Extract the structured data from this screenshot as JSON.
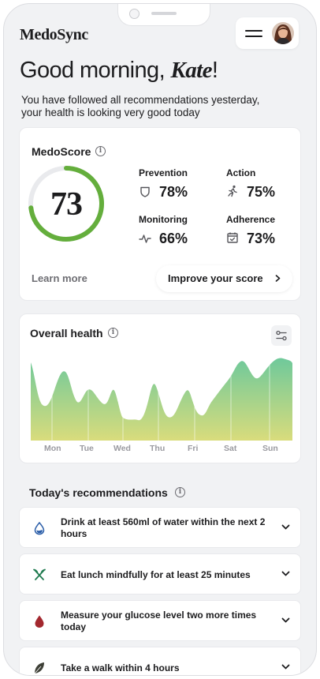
{
  "app": {
    "logo": "MedoSync"
  },
  "header": {
    "menu_icon": "hamburger-menu-icon",
    "avatar": "user-avatar"
  },
  "greeting": {
    "prefix": "Good morning, ",
    "name": "Kate",
    "suffix": "!"
  },
  "subtitle": "You have followed all recommendations yesterday, your health is looking very good today",
  "medoscore": {
    "title": "MedoScore",
    "score": "73",
    "score_fraction": 0.73,
    "ring_color": "#64ae3c",
    "metrics": [
      {
        "label": "Prevention",
        "value": "78%",
        "icon": "shield-icon"
      },
      {
        "label": "Action",
        "value": "75%",
        "icon": "running-icon"
      },
      {
        "label": "Monitoring",
        "value": "66%",
        "icon": "pulse-icon"
      },
      {
        "label": "Adherence",
        "value": "73%",
        "icon": "calendar-check-icon"
      }
    ],
    "learn_more": "Learn more",
    "improve": "Improve your score"
  },
  "health": {
    "title": "Overall health",
    "days": [
      "Mon",
      "Tue",
      "Wed",
      "Thu",
      "Fri",
      "Sat",
      "Sun"
    ],
    "gradient_top": "#6fc99b",
    "gradient_bottom": "#d9dc7c"
  },
  "recommendations": {
    "title": "Today's recommendations",
    "items": [
      {
        "text": "Drink at least 560ml of water within the next 2 hours",
        "icon": "water-drop-icon"
      },
      {
        "text": "Eat lunch mindfully for at least 25 minutes",
        "icon": "fork-knife-icon"
      },
      {
        "text": "Measure your glucose level two more times today",
        "icon": "blood-drop-icon"
      },
      {
        "text": "Take a walk within 4 hours",
        "icon": "leaf-icon"
      }
    ]
  }
}
